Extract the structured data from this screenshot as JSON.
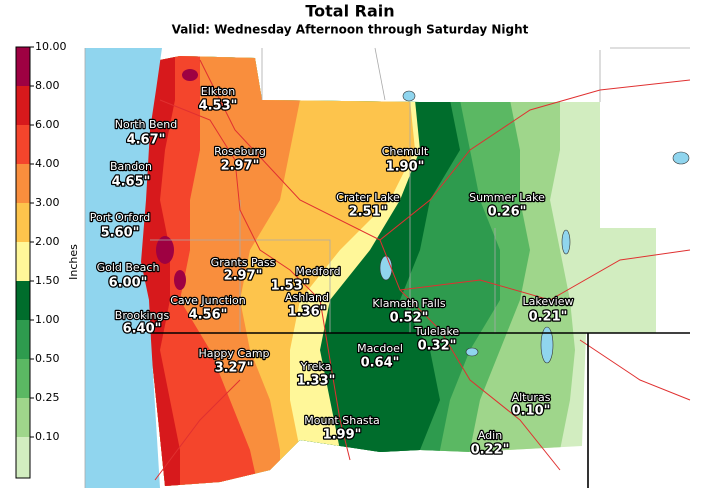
{
  "header": {
    "title": "Total Rain",
    "subtitle": "Valid: Wednesday Afternoon through Saturday Night"
  },
  "colorbar": {
    "label": "Inches",
    "ticks": [
      "10.00",
      "8.00",
      "6.00",
      "4.00",
      "3.00",
      "2.00",
      "1.50",
      "1.00",
      "0.50",
      "0.25",
      "0.10"
    ],
    "colors": [
      "#9e0142",
      "#d7191c",
      "#f4452c",
      "#f98e3d",
      "#fdc44c",
      "#fff799",
      "#006d2c",
      "#2e9b4e",
      "#5bb863",
      "#9fd68b",
      "#d2edc0"
    ]
  },
  "places": [
    {
      "name": "Elkton",
      "amount": "4.53\""
    },
    {
      "name": "North Bend",
      "amount": "4.67\""
    },
    {
      "name": "Roseburg",
      "amount": "2.97\""
    },
    {
      "name": "Chemult",
      "amount": "1.90\""
    },
    {
      "name": "Bandon",
      "amount": "4.65\""
    },
    {
      "name": "Crater Lake",
      "amount": "2.51\""
    },
    {
      "name": "Summer Lake",
      "amount": "0.26\""
    },
    {
      "name": "Port Orford",
      "amount": "5.60\""
    },
    {
      "name": "Grants Pass",
      "amount": "2.97\""
    },
    {
      "name": "Medford",
      "amount": "1.53\""
    },
    {
      "name": "Gold Beach",
      "amount": "6.00\""
    },
    {
      "name": "Ashland",
      "amount": "1.36\""
    },
    {
      "name": "Cave Junction",
      "amount": "4.56\""
    },
    {
      "name": "Klamath Falls",
      "amount": "0.52\""
    },
    {
      "name": "Lakeview",
      "amount": "0.21\""
    },
    {
      "name": "Brookings",
      "amount": "6.40\""
    },
    {
      "name": "Tulelake",
      "amount": "0.32\""
    },
    {
      "name": "Happy Camp",
      "amount": "3.27\""
    },
    {
      "name": "Macdoel",
      "amount": "0.64\""
    },
    {
      "name": "Yreka",
      "amount": "1.33\""
    },
    {
      "name": "Alturas",
      "amount": "0.10\""
    },
    {
      "name": "Mount Shasta",
      "amount": "1.99\""
    },
    {
      "name": "Adin",
      "amount": "0.22\""
    }
  ]
}
